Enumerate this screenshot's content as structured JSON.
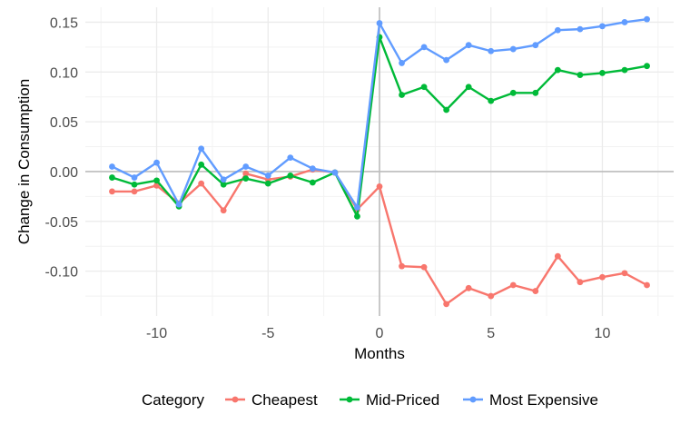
{
  "chart_data": {
    "type": "line",
    "title": "",
    "xlabel": "Months",
    "ylabel": "Change in Consumption",
    "xlim": [
      -13.2,
      13.2
    ],
    "ylim": [
      -0.145,
      0.165
    ],
    "x_ticks": [
      -10,
      -5,
      0,
      5,
      10
    ],
    "x_tick_labels": [
      "-10",
      "-5",
      "0",
      "5",
      "10"
    ],
    "y_ticks": [
      0.15,
      0.1,
      0.05,
      0.0,
      -0.05,
      -0.1
    ],
    "y_tick_labels": [
      "0.15",
      "0.10",
      "0.05",
      "0.00",
      "-0.05",
      "-0.10"
    ],
    "grid": true,
    "reference_lines": {
      "x": 0,
      "y": 0
    },
    "legend": {
      "title": "Category",
      "position": "bottom"
    },
    "x": [
      -12,
      -11,
      -10,
      -9,
      -8,
      -7,
      -6,
      -5,
      -4,
      -3,
      -2,
      -1,
      0,
      1,
      2,
      3,
      4,
      5,
      6,
      7,
      8,
      9,
      10,
      11,
      12
    ],
    "series": [
      {
        "name": "Cheapest",
        "color": "#F8766D",
        "values": [
          -0.02,
          -0.02,
          -0.014,
          -0.032,
          -0.012,
          -0.039,
          -0.002,
          -0.008,
          -0.005,
          0.002,
          -0.001,
          -0.038,
          -0.015,
          -0.095,
          -0.096,
          -0.133,
          -0.117,
          -0.125,
          -0.114,
          -0.12,
          -0.085,
          -0.111,
          -0.106,
          -0.102,
          -0.114
        ]
      },
      {
        "name": "Mid-Priced",
        "color": "#00BA38",
        "values": [
          -0.006,
          -0.013,
          -0.009,
          -0.035,
          0.007,
          -0.013,
          -0.007,
          -0.012,
          -0.004,
          -0.011,
          -0.001,
          -0.045,
          0.135,
          0.077,
          0.085,
          0.062,
          0.085,
          0.071,
          0.079,
          0.079,
          0.102,
          0.097,
          0.099,
          0.102,
          0.106
        ]
      },
      {
        "name": "Most Expensive",
        "color": "#619CFF",
        "values": [
          0.005,
          -0.006,
          0.009,
          -0.033,
          0.023,
          -0.008,
          0.005,
          -0.004,
          0.014,
          0.003,
          -0.001,
          -0.036,
          0.149,
          0.109,
          0.125,
          0.112,
          0.127,
          0.121,
          0.123,
          0.127,
          0.142,
          0.143,
          0.146,
          0.15,
          0.153
        ]
      }
    ]
  }
}
